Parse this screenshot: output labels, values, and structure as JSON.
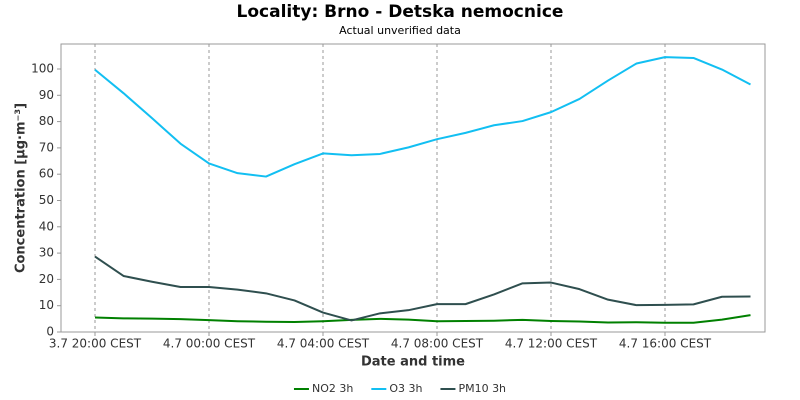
{
  "chart_data": {
    "type": "line",
    "title": "Locality: Brno - Detska nemocnice",
    "subtitle": "Actual unverified data",
    "x_label": "Date and time",
    "y_label": "Concentration [μg·m⁻³]",
    "categories": [
      "3.7 20:00 CEST",
      null,
      null,
      null,
      "4.7 00:00 CEST",
      null,
      null,
      null,
      "4.7 04:00 CEST",
      null,
      null,
      null,
      "4.7 08:00 CEST",
      null,
      null,
      null,
      "4.7 12:00 CEST",
      null,
      null,
      null,
      "4.7 16:00 CEST",
      null,
      null,
      null
    ],
    "series": [
      {
        "name": "NO2 3h",
        "color": "#008000",
        "values": [
          5.5,
          5.2,
          5.1,
          4.9,
          4.5,
          4.1,
          3.9,
          3.8,
          4.1,
          4.6,
          5.0,
          4.7,
          4.1,
          4.2,
          4.3,
          4.6,
          4.2,
          4.0,
          3.6,
          3.7,
          3.5,
          3.5,
          4.7,
          6.4
        ]
      },
      {
        "name": "O3 3h",
        "color": "#12bff2",
        "values": [
          99.7,
          90.8,
          81.3,
          71.6,
          64.1,
          60.4,
          59.1,
          63.8,
          67.9,
          67.2,
          67.7,
          70.2,
          73.3,
          75.7,
          78.6,
          80.2,
          83.6,
          88.6,
          95.6,
          102.1,
          104.5,
          104.2,
          99.8,
          94.1
        ]
      },
      {
        "name": "PM10 3h",
        "color": "#2f4f4f",
        "values": [
          28.7,
          21.3,
          19.1,
          17.1,
          17.1,
          16.1,
          14.7,
          12.0,
          7.4,
          4.4,
          7.1,
          8.3,
          10.6,
          10.6,
          14.3,
          18.5,
          18.8,
          16.3,
          12.3,
          10.2,
          10.3,
          10.5,
          13.4,
          13.5
        ]
      }
    ],
    "ylim": [
      0,
      109.5
    ],
    "yticks": [
      0,
      10,
      20,
      30,
      40,
      50,
      60,
      70,
      80,
      90,
      100
    ],
    "grid": true,
    "legend": "bottom"
  }
}
